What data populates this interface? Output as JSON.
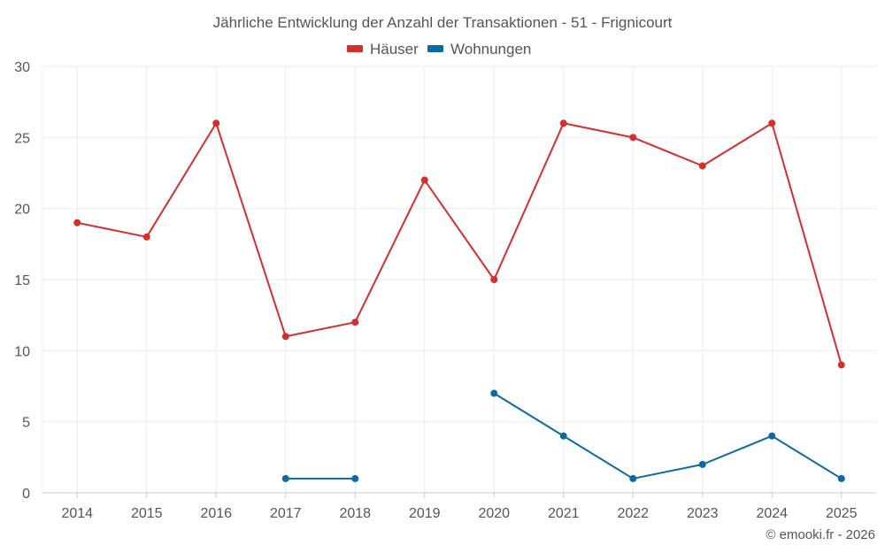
{
  "chart_data": {
    "type": "line",
    "title": "Jährliche Entwicklung der Anzahl der Transaktionen - 51 - Frignicourt",
    "categories": [
      "2014",
      "2015",
      "2016",
      "2017",
      "2018",
      "2019",
      "2020",
      "2021",
      "2022",
      "2023",
      "2024",
      "2025"
    ],
    "ylim": [
      0,
      30
    ],
    "yticks": [
      0,
      5,
      10,
      15,
      20,
      25,
      30
    ],
    "grid": true,
    "legend_position": "top-center",
    "series": [
      {
        "name": "Häuser",
        "color": "#d32f2f",
        "values": [
          19,
          18,
          26,
          11,
          12,
          22,
          15,
          26,
          25,
          23,
          26,
          9
        ]
      },
      {
        "name": "Wohnungen",
        "color": "#0a6aa1",
        "values": [
          null,
          null,
          null,
          1,
          1,
          null,
          7,
          4,
          1,
          2,
          4,
          1
        ]
      }
    ],
    "credit": "© emooki.fr - 2026"
  }
}
